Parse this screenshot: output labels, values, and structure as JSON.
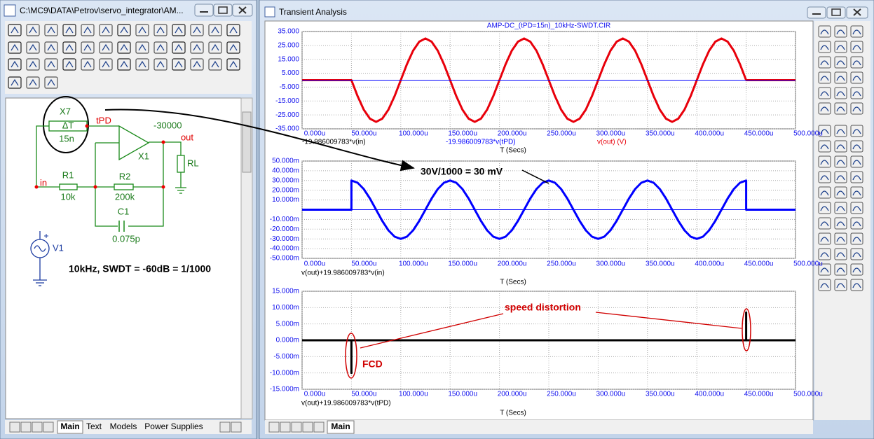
{
  "schematic_window": {
    "title": "C:\\MC9\\DATA\\Petrov\\servo_integrator\\AM...",
    "labels": {
      "x7": "X7",
      "delta_t": "ΔT",
      "delay": "15n",
      "tpd": "tPD",
      "gain": "-30000",
      "out": "out",
      "x1": "X1",
      "r1": "R1",
      "r1_value": "10k",
      "r2": "R2",
      "r2_value": "200k",
      "rl": "RL",
      "c1": "C1",
      "c1_value": "0.075p",
      "v1": "V1",
      "in": "in"
    },
    "note": "10kHz, SWDT = -60dB = 1/1000",
    "tabs": [
      "Main",
      "Text",
      "Models",
      "Power Supplies"
    ]
  },
  "analysis_window": {
    "title": "Transient Analysis",
    "tabs": [
      "Main"
    ]
  },
  "chart_data": [
    {
      "type": "line",
      "title": "AMP-DC_(tPD=15n)_10kHz-SWDT.CIR",
      "x_expression": "-19.986009783*v(in)",
      "xlabel": "T (Secs)",
      "x": [
        0,
        50,
        56.25,
        62.5,
        68.75,
        75,
        81.25,
        87.5,
        93.75,
        100,
        106.25,
        112.5,
        118.75,
        125,
        131.25,
        137.5,
        143.75,
        150,
        156.25,
        162.5,
        168.75,
        175,
        181.25,
        187.5,
        193.75,
        200,
        206.25,
        212.5,
        218.75,
        225,
        231.25,
        237.5,
        243.75,
        250,
        256.25,
        262.5,
        268.75,
        275,
        281.25,
        287.5,
        293.75,
        300,
        306.25,
        312.5,
        318.75,
        325,
        331.25,
        337.5,
        343.75,
        350,
        356.25,
        362.5,
        368.75,
        375,
        381.25,
        387.5,
        393.75,
        400,
        406.25,
        412.5,
        418.75,
        425,
        431.25,
        437.5,
        443.75,
        450,
        500
      ],
      "series": [
        {
          "name": "v(out) (V)",
          "color": "#e8000b",
          "width": 3,
          "values": [
            0,
            0,
            -11.5,
            -21.2,
            -27.7,
            -30,
            -27.7,
            -21.2,
            -11.5,
            0,
            11.5,
            21.2,
            27.7,
            30,
            27.7,
            21.2,
            11.5,
            0,
            -11.5,
            -21.2,
            -27.7,
            -30,
            -27.7,
            -21.2,
            -11.5,
            0,
            11.5,
            21.2,
            27.7,
            30,
            27.7,
            21.2,
            11.5,
            0,
            -11.5,
            -21.2,
            -27.7,
            -30,
            -27.7,
            -21.2,
            -11.5,
            0,
            11.5,
            21.2,
            27.7,
            30,
            27.7,
            21.2,
            11.5,
            0,
            -11.5,
            -21.2,
            -27.7,
            -30,
            -27.7,
            -21.2,
            -11.5,
            0,
            11.5,
            21.2,
            27.7,
            30,
            27.7,
            21.2,
            11.5,
            0,
            0
          ]
        },
        {
          "name": "-19.986009783*v(tPD)",
          "color": "#0000ff",
          "width": 1,
          "x": [
            0,
            500
          ],
          "values": [
            0,
            0
          ]
        }
      ],
      "xlim": [
        0,
        500
      ],
      "xticks": [
        {
          "value": 0,
          "label": "0.000u"
        },
        {
          "value": 50,
          "label": "50.000u"
        },
        {
          "value": 100,
          "label": "100.000u"
        },
        {
          "value": 150,
          "label": "150.000u"
        },
        {
          "value": 200,
          "label": "200.000u"
        },
        {
          "value": 250,
          "label": "250.000u"
        },
        {
          "value": 300,
          "label": "300.000u"
        },
        {
          "value": 350,
          "label": "350.000u"
        },
        {
          "value": 400,
          "label": "400.000u"
        },
        {
          "value": 450,
          "label": "450.000u"
        },
        {
          "value": 500,
          "label": "500.000u"
        }
      ],
      "ylim": [
        -35,
        35
      ],
      "yticks": [
        {
          "value": 35,
          "label": "35.000"
        },
        {
          "value": 25,
          "label": "25.000"
        },
        {
          "value": 15,
          "label": "15.000"
        },
        {
          "value": 5,
          "label": "5.000"
        },
        {
          "value": -5,
          "label": "-5.000"
        },
        {
          "value": -15,
          "label": "-15.000"
        },
        {
          "value": -25,
          "label": "-25.000"
        },
        {
          "value": -35,
          "label": "-35.000"
        }
      ],
      "grid": true,
      "legend_colored": true
    },
    {
      "type": "line",
      "xlabel": "T (Secs)",
      "annotation": "30V/1000 = 30 mV",
      "x": [
        0,
        50,
        50,
        56.25,
        62.5,
        68.75,
        75,
        81.25,
        87.5,
        93.75,
        100,
        106.25,
        112.5,
        118.75,
        125,
        131.25,
        137.5,
        143.75,
        150,
        156.25,
        162.5,
        168.75,
        175,
        181.25,
        187.5,
        193.75,
        200,
        206.25,
        212.5,
        218.75,
        225,
        231.25,
        237.5,
        243.75,
        250,
        256.25,
        262.5,
        268.75,
        275,
        281.25,
        287.5,
        293.75,
        300,
        306.25,
        312.5,
        318.75,
        325,
        331.25,
        337.5,
        343.75,
        350,
        356.25,
        362.5,
        368.75,
        375,
        381.25,
        387.5,
        393.75,
        400,
        406.25,
        412.5,
        418.75,
        425,
        431.25,
        437.5,
        443.75,
        450,
        450,
        500
      ],
      "series": [
        {
          "name": "v(out)+19.986009783*v(in)",
          "color": "#0000ff",
          "width": 3,
          "values": [
            0,
            0,
            30,
            27.7,
            21.2,
            11.5,
            0,
            -11.5,
            -21.2,
            -27.7,
            -30,
            -27.7,
            -21.2,
            -11.5,
            0,
            11.5,
            21.2,
            27.7,
            30,
            27.7,
            21.2,
            11.5,
            0,
            -11.5,
            -21.2,
            -27.7,
            -30,
            -27.7,
            -21.2,
            -11.5,
            0,
            11.5,
            21.2,
            27.7,
            30,
            27.7,
            21.2,
            11.5,
            0,
            -11.5,
            -21.2,
            -27.7,
            -30,
            -27.7,
            -21.2,
            -11.5,
            0,
            11.5,
            21.2,
            27.7,
            30,
            27.7,
            21.2,
            11.5,
            0,
            -11.5,
            -21.2,
            -27.7,
            -30,
            -27.7,
            -21.2,
            -11.5,
            0,
            11.5,
            21.2,
            27.7,
            30,
            0,
            0
          ]
        }
      ],
      "xlim": [
        0,
        500
      ],
      "xticks": [
        {
          "value": 0,
          "label": "0.000u"
        },
        {
          "value": 50,
          "label": "50.000u"
        },
        {
          "value": 100,
          "label": "100.000u"
        },
        {
          "value": 150,
          "label": "150.000u"
        },
        {
          "value": 200,
          "label": "200.000u"
        },
        {
          "value": 250,
          "label": "250.000u"
        },
        {
          "value": 300,
          "label": "300.000u"
        },
        {
          "value": 350,
          "label": "350.000u"
        },
        {
          "value": 400,
          "label": "400.000u"
        },
        {
          "value": 450,
          "label": "450.000u"
        },
        {
          "value": 500,
          "label": "500.000u"
        }
      ],
      "ylim": [
        -50,
        50
      ],
      "yticks": [
        {
          "value": 50,
          "label": "50.000m"
        },
        {
          "value": 40,
          "label": "40.000m"
        },
        {
          "value": 30,
          "label": "30.000m"
        },
        {
          "value": 20,
          "label": "20.000m"
        },
        {
          "value": 10,
          "label": "10.000m"
        },
        {
          "value": -10,
          "label": "-10.000m"
        },
        {
          "value": -20,
          "label": "-20.000m"
        },
        {
          "value": -30,
          "label": "-30.000m"
        },
        {
          "value": -40,
          "label": "-40.000m"
        },
        {
          "value": -50,
          "label": "-50.000m"
        }
      ],
      "grid": true,
      "legend_colored": false,
      "zero_line": true
    },
    {
      "type": "line",
      "xlabel": "T (Secs)",
      "annotations": [
        "speed distortion",
        "FCD"
      ],
      "x": [
        0,
        50,
        50,
        50,
        450,
        450,
        450,
        500
      ],
      "series": [
        {
          "name": "v(out)+19.986009783*v(tPD)",
          "color": "#000000",
          "width": 3,
          "values": [
            0,
            0,
            -10,
            0,
            0,
            8.5,
            0,
            0
          ]
        }
      ],
      "xlim": [
        0,
        500
      ],
      "xticks": [
        {
          "value": 0,
          "label": "0.000u"
        },
        {
          "value": 50,
          "label": "50.000u"
        },
        {
          "value": 100,
          "label": "100.000u"
        },
        {
          "value": 150,
          "label": "150.000u"
        },
        {
          "value": 200,
          "label": "200.000u"
        },
        {
          "value": 250,
          "label": "250.000u"
        },
        {
          "value": 300,
          "label": "300.000u"
        },
        {
          "value": 350,
          "label": "350.000u"
        },
        {
          "value": 400,
          "label": "400.000u"
        },
        {
          "value": 450,
          "label": "450.000u"
        },
        {
          "value": 500,
          "label": "500.000u"
        }
      ],
      "ylim": [
        -15,
        15
      ],
      "yticks": [
        {
          "value": 15,
          "label": "15.000m"
        },
        {
          "value": 10,
          "label": "10.000m"
        },
        {
          "value": 5,
          "label": "5.000m"
        },
        {
          "value": 0,
          "label": "0.000m"
        },
        {
          "value": -5,
          "label": "-5.000m"
        },
        {
          "value": -10,
          "label": "-10.000m"
        },
        {
          "value": -15,
          "label": "-15.000m"
        }
      ],
      "grid": true,
      "legend_colored": false
    }
  ]
}
